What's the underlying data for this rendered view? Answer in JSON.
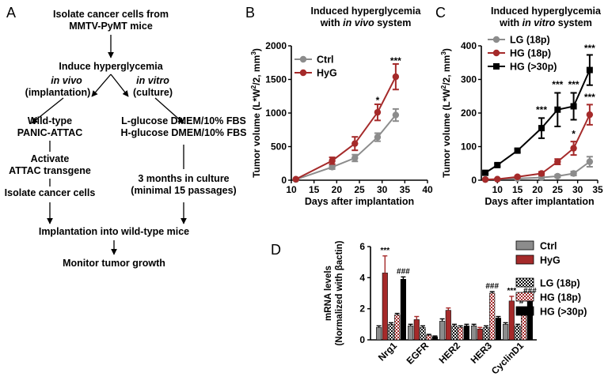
{
  "panel_letters": [
    "A",
    "B",
    "C",
    "D"
  ],
  "flow": {
    "isolate": [
      "Isolate cancer cells from",
      "MMTV-PyMT mice"
    ],
    "induce": "Induce hyperglycemia",
    "in_vivo": "in vivo",
    "in_vivo_sub": "(implantation)",
    "in_vitro": "in vitro",
    "in_vitro_sub": "(culture)",
    "wild_type": [
      "Wild-type",
      "PANIC-ATTAC"
    ],
    "activate": [
      "Activate",
      "ATTAC transgene"
    ],
    "isolate_cells": "Isolate cancer cells",
    "media": [
      "L-glucose DMEM/10% FBS",
      "H-glucose DMEM/10% FBS"
    ],
    "culture": [
      "3 months in culture",
      "(minimal 15 passages)"
    ],
    "implant": "Implantation into wild-type mice",
    "monitor": "Monitor tumor growth"
  },
  "colors": {
    "ctrl": "#8c8c8c",
    "hyg": "#a52a2a",
    "black": "#000000"
  },
  "chart_data": [
    {
      "panel": "B",
      "type": "line",
      "title_lines": [
        "Induced hyperglycemia",
        "with |in vivo| system"
      ],
      "xlabel": "Days after implantation",
      "ylabel": "Tumor volume (L*W^2/2, mm^3)",
      "xlim": [
        10,
        40
      ],
      "ylim": [
        0,
        2000
      ],
      "xticks": [
        10,
        15,
        20,
        25,
        30,
        35,
        40
      ],
      "yticks": [
        0,
        500,
        1000,
        1500,
        2000
      ],
      "legend": "top-left",
      "series": [
        {
          "name": "Ctrl",
          "color": "#8c8c8c",
          "x": [
            11,
            19,
            24,
            29,
            33
          ],
          "y": [
            10,
            195,
            330,
            640,
            970
          ],
          "err": [
            5,
            30,
            50,
            60,
            90
          ]
        },
        {
          "name": "HyG",
          "color": "#a52a2a",
          "x": [
            11,
            19,
            24,
            29,
            33
          ],
          "y": [
            15,
            290,
            545,
            1010,
            1540
          ],
          "err": [
            5,
            50,
            100,
            120,
            190
          ]
        }
      ],
      "annotations": [
        {
          "x": 29,
          "y": 1140,
          "text": "*"
        },
        {
          "x": 33,
          "y": 1730,
          "text": "***"
        }
      ]
    },
    {
      "panel": "C",
      "type": "line",
      "title_lines": [
        "Induced hyperglycemia",
        "with |in vitro| system"
      ],
      "xlabel": "Days after implantation",
      "ylabel": "Tumor volume (L*W^2/2, mm^3)",
      "xlim": [
        6,
        35
      ],
      "ylim": [
        0,
        400
      ],
      "xticks": [
        10,
        15,
        20,
        25,
        30,
        35
      ],
      "yticks": [
        0,
        100,
        200,
        300,
        400
      ],
      "legend": "top-left",
      "series": [
        {
          "name": "LG (18p)",
          "color": "#8c8c8c",
          "marker": "circle",
          "x": [
            7,
            10,
            15,
            21,
            25,
            29,
            33
          ],
          "y": [
            2,
            3,
            5,
            8,
            12,
            20,
            55
          ],
          "err": [
            1,
            1,
            2,
            3,
            4,
            6,
            15
          ]
        },
        {
          "name": "HG (18p)",
          "color": "#a52a2a",
          "marker": "circle",
          "x": [
            7,
            10,
            15,
            21,
            25,
            29,
            33
          ],
          "y": [
            2,
            3,
            10,
            20,
            55,
            95,
            195
          ],
          "err": [
            1,
            1,
            3,
            5,
            8,
            20,
            30
          ]
        },
        {
          "name": "HG (>30p)",
          "color": "#000000",
          "marker": "square",
          "x": [
            7,
            10,
            15,
            21,
            25,
            29,
            33
          ],
          "y": [
            22,
            45,
            88,
            155,
            210,
            220,
            328
          ],
          "err": [
            3,
            4,
            5,
            30,
            50,
            40,
            45
          ]
        }
      ],
      "annotations": [
        {
          "x": 21,
          "y": 200,
          "text": "***"
        },
        {
          "x": 25,
          "y": 275,
          "text": "***"
        },
        {
          "x": 29,
          "y": 275,
          "text": "***"
        },
        {
          "x": 29,
          "y": 128,
          "text": "*"
        },
        {
          "x": 33,
          "y": 383,
          "text": "***"
        },
        {
          "x": 33,
          "y": 238,
          "text": "***"
        }
      ]
    },
    {
      "panel": "D",
      "type": "bar",
      "ylabel_lines": [
        "mRNA levels",
        "(Normalized with βactin)"
      ],
      "ylim": [
        0,
        6
      ],
      "yticks": [
        0,
        2,
        4,
        6
      ],
      "categories": [
        "Nrg1",
        "EGFR",
        "HER2",
        "HER3",
        "CyclinD1"
      ],
      "legend": "right",
      "series": [
        {
          "name": "Ctrl",
          "style": "gray",
          "values": [
            0.8,
            0.9,
            1.2,
            0.9,
            1.0
          ],
          "err": [
            0.1,
            0.1,
            0.15,
            0.1,
            0.1
          ]
        },
        {
          "name": "HyG",
          "style": "red",
          "values": [
            4.3,
            1.3,
            1.9,
            0.7,
            2.5
          ],
          "err": [
            1.1,
            0.2,
            0.15,
            0.1,
            0.3
          ]
        },
        {
          "name": "LG (18p)",
          "style": "check-black",
          "values": [
            1.0,
            0.8,
            0.9,
            0.8,
            0.9
          ],
          "err": [
            0.1,
            0.1,
            0.1,
            0.1,
            0.1
          ]
        },
        {
          "name": "HG (18p)",
          "style": "check-red",
          "values": [
            1.6,
            0.3,
            0.8,
            3.0,
            2.0
          ],
          "err": [
            0.1,
            0.05,
            0.1,
            0.1,
            0.1
          ]
        },
        {
          "name": "HG (>30p)",
          "style": "black",
          "values": [
            3.9,
            0.2,
            0.9,
            1.4,
            2.6
          ],
          "err": [
            0.15,
            0.05,
            0.1,
            0.1,
            0.2
          ]
        }
      ],
      "annotations": [
        {
          "category": 0,
          "series": 1,
          "text": "***"
        },
        {
          "category": 0,
          "series": 4,
          "text": "###"
        },
        {
          "category": 3,
          "series": 3,
          "text": "###"
        },
        {
          "category": 4,
          "series": 1,
          "text": "***"
        },
        {
          "category": 4,
          "series": 3,
          "text": "#"
        },
        {
          "category": 4,
          "series": 4,
          "text": "###"
        }
      ]
    }
  ]
}
